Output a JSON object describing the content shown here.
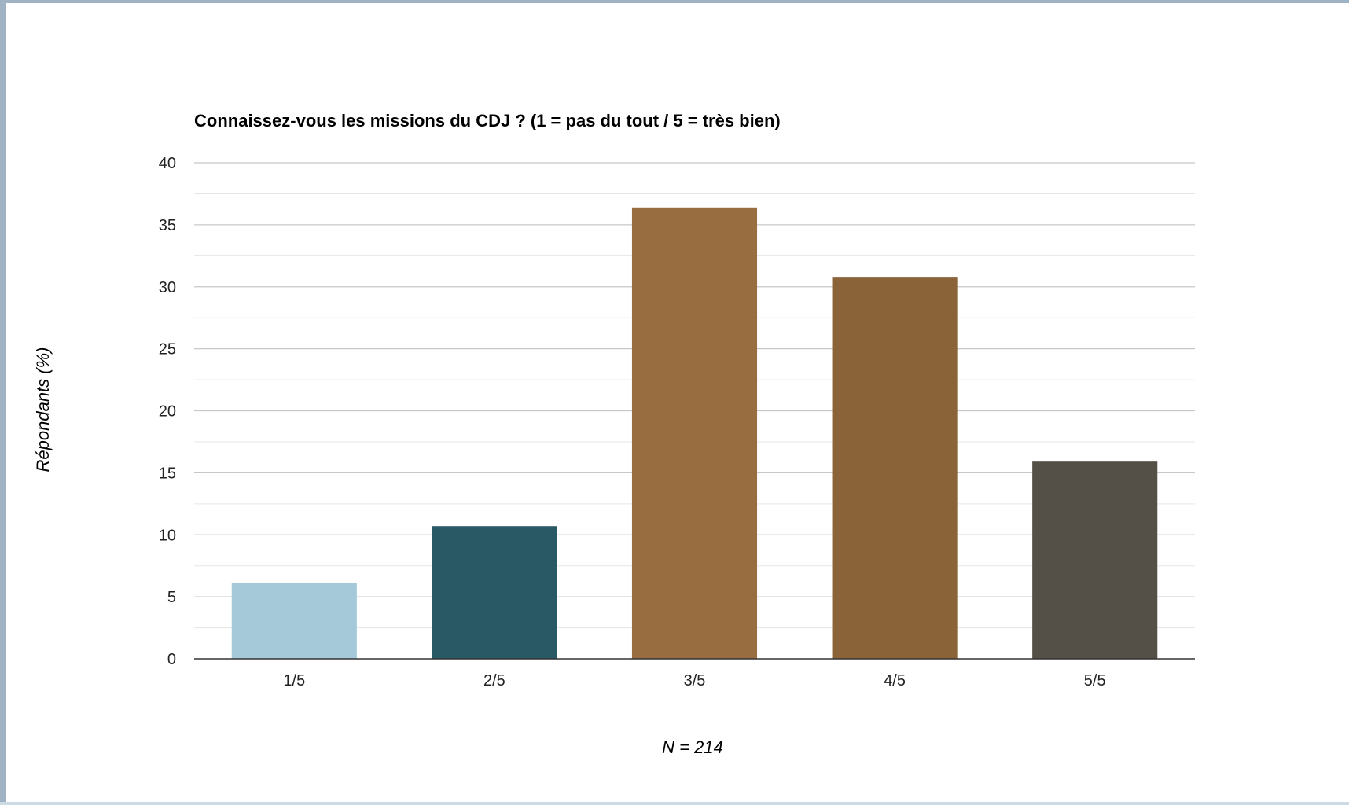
{
  "chart_data": {
    "type": "bar",
    "title": "Connaissez-vous les missions du CDJ ? (1 = pas du tout / 5 = très bien)",
    "xlabel": "N = 214",
    "ylabel": "Répondants (%)",
    "categories": [
      "1/5",
      "2/5",
      "3/5",
      "4/5",
      "5/5"
    ],
    "values": [
      6.1,
      10.7,
      36.4,
      30.8,
      15.9
    ],
    "colors": [
      "#a5c9d8",
      "#2a5966",
      "#986d3f",
      "#8a6338",
      "#545048"
    ],
    "ylim": [
      0,
      40
    ],
    "yticks": [
      0,
      5,
      10,
      15,
      20,
      25,
      30,
      35,
      40
    ],
    "grid": true,
    "legend": "none"
  }
}
